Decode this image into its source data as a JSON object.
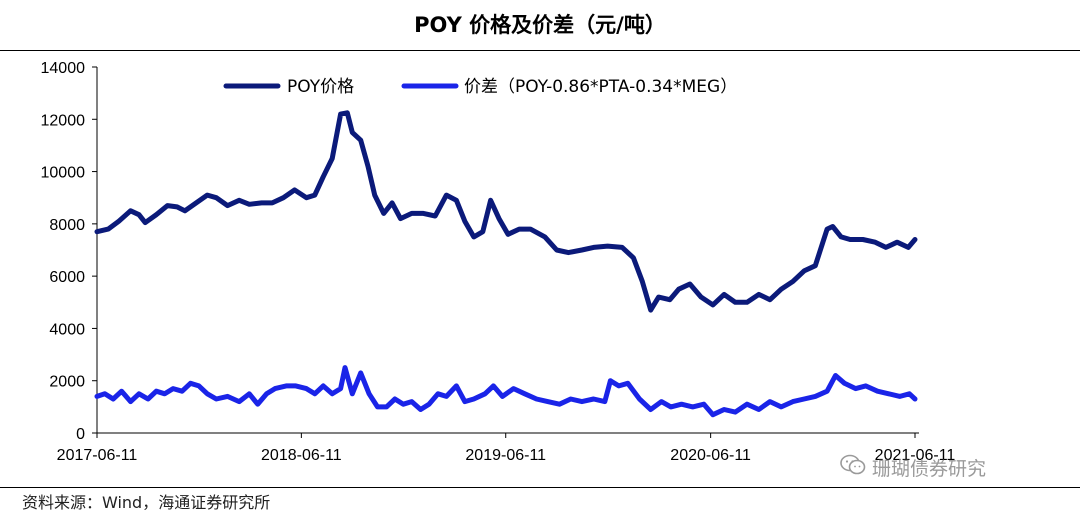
{
  "title": "POY 价格及价差（元/吨）",
  "source": "资料来源：Wind，海通证券研究所",
  "watermark": "珊瑚债券研究",
  "chart_data": {
    "type": "line",
    "title": "POY 价格及价差（元/吨）",
    "ylim": [
      0,
      14000
    ],
    "yticks": [
      0,
      2000,
      4000,
      6000,
      8000,
      10000,
      12000,
      14000
    ],
    "xlim": [
      "2017-06-11",
      "2021-06-11"
    ],
    "xticks": [
      "2017-06-11",
      "2018-06-11",
      "2019-06-11",
      "2020-06-11",
      "2021-06-11"
    ],
    "legend_position": "top",
    "grid": false,
    "series": [
      {
        "name": "POY价格",
        "color": "#0b1a7a",
        "points": [
          [
            "2017-06-11",
            7700
          ],
          [
            "2017-07-01",
            7800
          ],
          [
            "2017-07-20",
            8100
          ],
          [
            "2017-08-10",
            8500
          ],
          [
            "2017-08-25",
            8350
          ],
          [
            "2017-09-05",
            8050
          ],
          [
            "2017-09-25",
            8350
          ],
          [
            "2017-10-15",
            8700
          ],
          [
            "2017-11-01",
            8650
          ],
          [
            "2017-11-15",
            8500
          ],
          [
            "2017-12-05",
            8800
          ],
          [
            "2017-12-25",
            9100
          ],
          [
            "2018-01-10",
            9000
          ],
          [
            "2018-01-30",
            8700
          ],
          [
            "2018-02-20",
            8900
          ],
          [
            "2018-03-10",
            8750
          ],
          [
            "2018-04-01",
            8800
          ],
          [
            "2018-04-20",
            8800
          ],
          [
            "2018-05-10",
            9000
          ],
          [
            "2018-05-30",
            9300
          ],
          [
            "2018-06-20",
            9000
          ],
          [
            "2018-07-05",
            9100
          ],
          [
            "2018-07-20",
            9800
          ],
          [
            "2018-08-05",
            10500
          ],
          [
            "2018-08-20",
            12200
          ],
          [
            "2018-09-01",
            12250
          ],
          [
            "2018-09-10",
            11500
          ],
          [
            "2018-09-25",
            11200
          ],
          [
            "2018-10-08",
            10200
          ],
          [
            "2018-10-20",
            9100
          ],
          [
            "2018-11-05",
            8400
          ],
          [
            "2018-11-20",
            8800
          ],
          [
            "2018-12-05",
            8200
          ],
          [
            "2018-12-25",
            8400
          ],
          [
            "2019-01-15",
            8400
          ],
          [
            "2019-02-05",
            8300
          ],
          [
            "2019-02-25",
            9100
          ],
          [
            "2019-03-15",
            8900
          ],
          [
            "2019-03-30",
            8100
          ],
          [
            "2019-04-15",
            7500
          ],
          [
            "2019-05-01",
            7700
          ],
          [
            "2019-05-15",
            8900
          ],
          [
            "2019-05-30",
            8200
          ],
          [
            "2019-06-15",
            7600
          ],
          [
            "2019-07-05",
            7800
          ],
          [
            "2019-07-25",
            7800
          ],
          [
            "2019-08-20",
            7500
          ],
          [
            "2019-09-10",
            7000
          ],
          [
            "2019-10-01",
            6900
          ],
          [
            "2019-10-25",
            7000
          ],
          [
            "2019-11-15",
            7100
          ],
          [
            "2019-12-10",
            7150
          ],
          [
            "2020-01-05",
            7100
          ],
          [
            "2020-01-25",
            6700
          ],
          [
            "2020-02-10",
            5800
          ],
          [
            "2020-02-25",
            4700
          ],
          [
            "2020-03-10",
            5200
          ],
          [
            "2020-03-30",
            5100
          ],
          [
            "2020-04-15",
            5500
          ],
          [
            "2020-05-05",
            5700
          ],
          [
            "2020-05-25",
            5200
          ],
          [
            "2020-06-15",
            4900
          ],
          [
            "2020-07-05",
            5300
          ],
          [
            "2020-07-25",
            5000
          ],
          [
            "2020-08-15",
            5000
          ],
          [
            "2020-09-05",
            5300
          ],
          [
            "2020-09-25",
            5100
          ],
          [
            "2020-10-15",
            5500
          ],
          [
            "2020-11-05",
            5800
          ],
          [
            "2020-11-25",
            6200
          ],
          [
            "2020-12-15",
            6400
          ],
          [
            "2021-01-05",
            7800
          ],
          [
            "2021-01-15",
            7900
          ],
          [
            "2021-01-30",
            7500
          ],
          [
            "2021-02-15",
            7400
          ],
          [
            "2021-03-10",
            7400
          ],
          [
            "2021-04-01",
            7300
          ],
          [
            "2021-04-20",
            7100
          ],
          [
            "2021-05-10",
            7300
          ],
          [
            "2021-05-30",
            7100
          ],
          [
            "2021-06-11",
            7400
          ]
        ]
      },
      {
        "name": "价差（POY-0.86*PTA-0.34*MEG）",
        "color": "#1a24e8",
        "points": [
          [
            "2017-06-11",
            1400
          ],
          [
            "2017-06-25",
            1500
          ],
          [
            "2017-07-10",
            1300
          ],
          [
            "2017-07-25",
            1600
          ],
          [
            "2017-08-10",
            1200
          ],
          [
            "2017-08-25",
            1500
          ],
          [
            "2017-09-10",
            1300
          ],
          [
            "2017-09-25",
            1600
          ],
          [
            "2017-10-10",
            1500
          ],
          [
            "2017-10-25",
            1700
          ],
          [
            "2017-11-10",
            1600
          ],
          [
            "2017-11-25",
            1900
          ],
          [
            "2017-12-10",
            1800
          ],
          [
            "2017-12-25",
            1500
          ],
          [
            "2018-01-10",
            1300
          ],
          [
            "2018-01-30",
            1400
          ],
          [
            "2018-02-20",
            1200
          ],
          [
            "2018-03-10",
            1500
          ],
          [
            "2018-03-25",
            1100
          ],
          [
            "2018-04-10",
            1500
          ],
          [
            "2018-04-25",
            1700
          ],
          [
            "2018-05-15",
            1800
          ],
          [
            "2018-06-01",
            1800
          ],
          [
            "2018-06-20",
            1700
          ],
          [
            "2018-07-05",
            1500
          ],
          [
            "2018-07-20",
            1800
          ],
          [
            "2018-08-05",
            1500
          ],
          [
            "2018-08-20",
            1700
          ],
          [
            "2018-08-28",
            2500
          ],
          [
            "2018-09-10",
            1500
          ],
          [
            "2018-09-25",
            2300
          ],
          [
            "2018-10-10",
            1500
          ],
          [
            "2018-10-25",
            1000
          ],
          [
            "2018-11-10",
            1000
          ],
          [
            "2018-11-25",
            1300
          ],
          [
            "2018-12-10",
            1100
          ],
          [
            "2018-12-25",
            1200
          ],
          [
            "2019-01-10",
            900
          ],
          [
            "2019-01-25",
            1100
          ],
          [
            "2019-02-10",
            1500
          ],
          [
            "2019-02-25",
            1400
          ],
          [
            "2019-03-15",
            1800
          ],
          [
            "2019-03-30",
            1200
          ],
          [
            "2019-04-15",
            1300
          ],
          [
            "2019-05-05",
            1500
          ],
          [
            "2019-05-20",
            1800
          ],
          [
            "2019-06-05",
            1400
          ],
          [
            "2019-06-25",
            1700
          ],
          [
            "2019-07-15",
            1500
          ],
          [
            "2019-08-05",
            1300
          ],
          [
            "2019-08-25",
            1200
          ],
          [
            "2019-09-15",
            1100
          ],
          [
            "2019-10-05",
            1300
          ],
          [
            "2019-10-25",
            1200
          ],
          [
            "2019-11-15",
            1300
          ],
          [
            "2019-12-05",
            1200
          ],
          [
            "2019-12-15",
            2000
          ],
          [
            "2019-12-30",
            1800
          ],
          [
            "2020-01-15",
            1900
          ],
          [
            "2020-02-05",
            1300
          ],
          [
            "2020-02-25",
            900
          ],
          [
            "2020-03-15",
            1200
          ],
          [
            "2020-04-01",
            1000
          ],
          [
            "2020-04-20",
            1100
          ],
          [
            "2020-05-10",
            1000
          ],
          [
            "2020-05-30",
            1100
          ],
          [
            "2020-06-15",
            700
          ],
          [
            "2020-07-05",
            900
          ],
          [
            "2020-07-25",
            800
          ],
          [
            "2020-08-15",
            1100
          ],
          [
            "2020-09-05",
            900
          ],
          [
            "2020-09-25",
            1200
          ],
          [
            "2020-10-15",
            1000
          ],
          [
            "2020-11-05",
            1200
          ],
          [
            "2020-11-25",
            1300
          ],
          [
            "2020-12-15",
            1400
          ],
          [
            "2021-01-05",
            1600
          ],
          [
            "2021-01-20",
            2200
          ],
          [
            "2021-02-05",
            1900
          ],
          [
            "2021-02-25",
            1700
          ],
          [
            "2021-03-15",
            1800
          ],
          [
            "2021-04-05",
            1600
          ],
          [
            "2021-04-25",
            1500
          ],
          [
            "2021-05-15",
            1400
          ],
          [
            "2021-06-01",
            1500
          ],
          [
            "2021-06-11",
            1300
          ]
        ]
      }
    ]
  }
}
